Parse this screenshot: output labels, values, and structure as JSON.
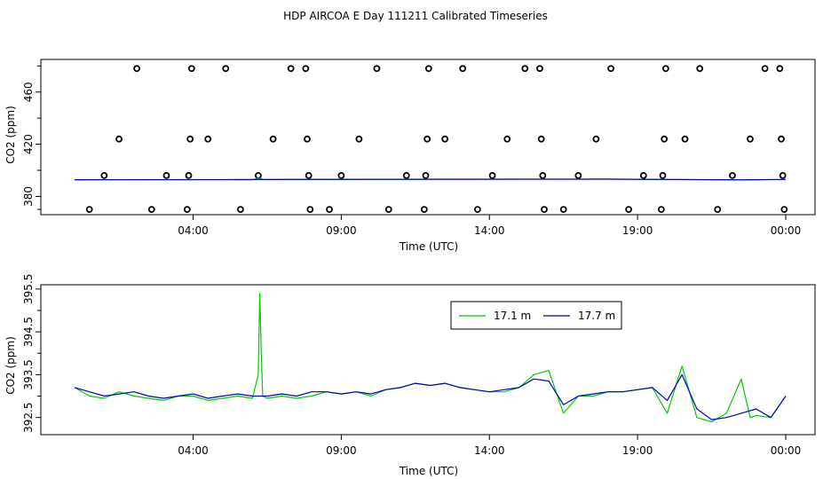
{
  "title": "HDP AIRCOA E  Day 111211  Calibrated Timeseries",
  "colors": {
    "series1": "#00cc00",
    "series2": "#0000cc",
    "axis": "#000000",
    "points": "#000000"
  },
  "chart_data": [
    {
      "type": "scatter",
      "xlabel": "Time (UTC)",
      "ylabel": "CO2 (ppm)",
      "xlim": [
        0.0,
        24.0
      ],
      "ylim": [
        366,
        485
      ],
      "x_ticks": [
        {
          "x": 4,
          "label": "04:00"
        },
        {
          "x": 9,
          "label": "09:00"
        },
        {
          "x": 14,
          "label": "14:00"
        },
        {
          "x": 19,
          "label": "19:00"
        },
        {
          "x": 24,
          "label": "00:00"
        }
      ],
      "y_ticks": [
        380,
        420,
        460
      ],
      "y_tick_labels": [
        "380",
        "420",
        "460"
      ],
      "points": [
        [
          0.5,
          370
        ],
        [
          1.0,
          396
        ],
        [
          1.5,
          424
        ],
        [
          2.1,
          478
        ],
        [
          2.6,
          370
        ],
        [
          3.1,
          396
        ],
        [
          3.8,
          370
        ],
        [
          3.85,
          396
        ],
        [
          3.9,
          424
        ],
        [
          3.95,
          478
        ],
        [
          4.5,
          424
        ],
        [
          5.1,
          478
        ],
        [
          5.6,
          370
        ],
        [
          6.2,
          396
        ],
        [
          6.7,
          424
        ],
        [
          7.3,
          478
        ],
        [
          7.8,
          478
        ],
        [
          7.85,
          424
        ],
        [
          7.9,
          396
        ],
        [
          7.95,
          370
        ],
        [
          8.6,
          370
        ],
        [
          9.0,
          396
        ],
        [
          9.6,
          424
        ],
        [
          10.2,
          478
        ],
        [
          10.6,
          370
        ],
        [
          11.2,
          396
        ],
        [
          11.8,
          370
        ],
        [
          11.85,
          396
        ],
        [
          11.9,
          424
        ],
        [
          11.95,
          478
        ],
        [
          12.5,
          424
        ],
        [
          13.1,
          478
        ],
        [
          13.6,
          370
        ],
        [
          14.1,
          396
        ],
        [
          14.6,
          424
        ],
        [
          15.2,
          478
        ],
        [
          15.7,
          478
        ],
        [
          15.75,
          424
        ],
        [
          15.8,
          396
        ],
        [
          15.85,
          370
        ],
        [
          16.5,
          370
        ],
        [
          17.0,
          396
        ],
        [
          17.6,
          424
        ],
        [
          18.1,
          478
        ],
        [
          18.7,
          370
        ],
        [
          19.2,
          396
        ],
        [
          19.8,
          370
        ],
        [
          19.85,
          396
        ],
        [
          19.9,
          424
        ],
        [
          19.95,
          478
        ],
        [
          20.6,
          424
        ],
        [
          21.1,
          478
        ],
        [
          21.7,
          370
        ],
        [
          22.2,
          396
        ],
        [
          22.8,
          424
        ],
        [
          23.3,
          478
        ],
        [
          23.8,
          478
        ],
        [
          23.85,
          424
        ],
        [
          23.9,
          396
        ],
        [
          23.95,
          370
        ]
      ],
      "series": [
        {
          "color": "#00cc00",
          "x": [
            0.0,
            6.0,
            6.2,
            6.4,
            12.0,
            18.0,
            22.5,
            24.0
          ],
          "values": [
            392.8,
            392.8,
            394.0,
            392.9,
            393.2,
            393.3,
            392.6,
            393.0
          ]
        },
        {
          "color": "#0000cc",
          "x": [
            0.0,
            6.0,
            12.0,
            18.0,
            22.5,
            24.0
          ],
          "values": [
            392.8,
            392.9,
            393.1,
            393.2,
            392.7,
            393.0
          ]
        }
      ]
    },
    {
      "type": "line",
      "xlabel": "Time (UTC)",
      "ylabel": "CO2 (ppm)",
      "xlim": [
        0.0,
        24.0
      ],
      "ylim": [
        392.1,
        395.6
      ],
      "x_ticks": [
        {
          "x": 4,
          "label": "04:00"
        },
        {
          "x": 9,
          "label": "09:00"
        },
        {
          "x": 14,
          "label": "14:00"
        },
        {
          "x": 19,
          "label": "19:00"
        },
        {
          "x": 24,
          "label": "00:00"
        }
      ],
      "y_ticks": [
        392.5,
        393.5,
        394.5,
        395.5
      ],
      "y_tick_labels": [
        "392.5",
        "393.5",
        "394.5",
        "395.5"
      ],
      "legend": {
        "position": "top-center",
        "entries": [
          "17.1 m",
          "17.7 m"
        ]
      },
      "series": [
        {
          "name": "17.1 m",
          "color": "#00cc00",
          "x": [
            0.0,
            0.5,
            1.0,
            1.5,
            2.0,
            2.5,
            3.0,
            3.5,
            4.0,
            4.5,
            5.0,
            5.5,
            6.0,
            6.2,
            6.25,
            6.3,
            6.35,
            6.5,
            7.0,
            7.5,
            8.0,
            8.5,
            9.0,
            9.5,
            10.0,
            10.5,
            11.0,
            11.5,
            12.0,
            12.5,
            13.0,
            13.5,
            14.0,
            14.5,
            15.0,
            15.5,
            16.0,
            16.5,
            17.0,
            17.5,
            18.0,
            18.5,
            19.0,
            19.5,
            20.0,
            20.5,
            21.0,
            21.5,
            22.0,
            22.5,
            22.8,
            23.0,
            23.5,
            24.0
          ],
          "values": [
            393.2,
            393.0,
            392.95,
            393.1,
            393.0,
            392.95,
            392.9,
            393.0,
            393.0,
            392.9,
            392.95,
            393.0,
            392.95,
            393.5,
            395.4,
            394.0,
            393.0,
            392.95,
            393.0,
            392.95,
            393.0,
            393.1,
            393.05,
            393.1,
            393.0,
            393.15,
            393.2,
            393.3,
            393.25,
            393.3,
            393.2,
            393.15,
            393.1,
            393.1,
            393.2,
            393.5,
            393.6,
            392.6,
            393.0,
            393.0,
            393.1,
            393.1,
            393.15,
            393.2,
            392.6,
            393.7,
            392.5,
            392.4,
            392.6,
            393.4,
            392.5,
            392.55,
            392.5,
            393.0
          ]
        },
        {
          "name": "17.7 m",
          "color": "#0000cc",
          "x": [
            0.0,
            0.5,
            1.0,
            1.5,
            2.0,
            2.5,
            3.0,
            3.5,
            4.0,
            4.5,
            5.0,
            5.5,
            6.0,
            6.5,
            7.0,
            7.5,
            8.0,
            8.5,
            9.0,
            9.5,
            10.0,
            10.5,
            11.0,
            11.5,
            12.0,
            12.5,
            13.0,
            13.5,
            14.0,
            14.5,
            15.0,
            15.5,
            16.0,
            16.5,
            17.0,
            17.5,
            18.0,
            18.5,
            19.0,
            19.5,
            20.0,
            20.5,
            21.0,
            21.5,
            22.0,
            22.5,
            23.0,
            23.5,
            24.0
          ],
          "values": [
            393.2,
            393.1,
            393.0,
            393.05,
            393.1,
            393.0,
            392.95,
            393.0,
            393.05,
            392.95,
            393.0,
            393.05,
            393.0,
            393.0,
            393.05,
            393.0,
            393.1,
            393.1,
            393.05,
            393.1,
            393.05,
            393.15,
            393.2,
            393.3,
            393.25,
            393.3,
            393.2,
            393.15,
            393.1,
            393.15,
            393.2,
            393.4,
            393.35,
            392.8,
            393.0,
            393.05,
            393.1,
            393.1,
            393.15,
            393.2,
            392.9,
            393.5,
            392.7,
            392.45,
            392.5,
            392.6,
            392.7,
            392.5,
            393.0
          ]
        }
      ]
    }
  ]
}
